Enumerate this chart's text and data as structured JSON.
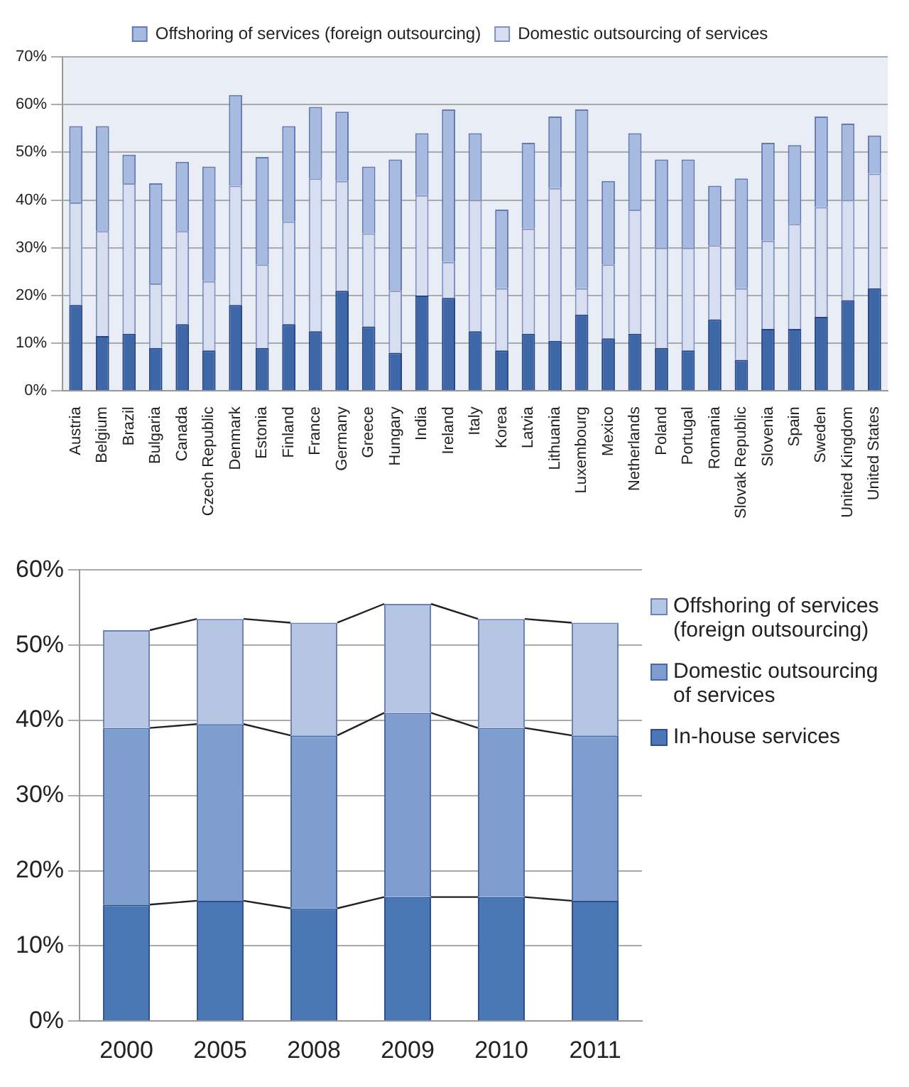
{
  "chart_data": [
    {
      "type": "bar",
      "stacked": true,
      "legend": "top",
      "grid": "y",
      "categories": [
        "Austria",
        "Belgium",
        "Brazil",
        "Bulgaria",
        "Canada",
        "Czech Republic",
        "Denmark",
        "Estonia",
        "Finland",
        "France",
        "Germany",
        "Greece",
        "Hungary",
        "India",
        "Ireland",
        "Italy",
        "Korea",
        "Latvia",
        "Lithuania",
        "Luxembourg",
        "Mexico",
        "Netherlands",
        "Poland",
        "Portugal",
        "Romania",
        "Slovak Republic",
        "Slovenia",
        "Spain",
        "Sweden",
        "United Kingdom",
        "United States"
      ],
      "ylim": [
        0,
        70
      ],
      "yticks": [
        {
          "value": 0,
          "label": "0%"
        },
        {
          "value": 10,
          "label": "10%"
        },
        {
          "value": 20,
          "label": "20%"
        },
        {
          "value": 30,
          "label": "30%"
        },
        {
          "value": 40,
          "label": "40%"
        },
        {
          "value": 50,
          "label": "50%"
        },
        {
          "value": 60,
          "label": "60%"
        },
        {
          "value": 70,
          "label": "70%"
        }
      ],
      "series": [
        {
          "color": "#3d67a6",
          "values": [
            18,
            11.5,
            12,
            9,
            14,
            8.5,
            18,
            9,
            14,
            12.5,
            21,
            13.5,
            8,
            20,
            19.5,
            12.5,
            8.5,
            12,
            10.5,
            16,
            11,
            12,
            9,
            8.5,
            15,
            6.5,
            13,
            13,
            15.5,
            19,
            21.5
          ]
        },
        {
          "name": "Domestic outsourcing of services",
          "color": "#d6def0",
          "values": [
            21.5,
            22,
            31.5,
            13.5,
            19.5,
            14.5,
            25,
            17.5,
            21.5,
            32,
            23,
            19.5,
            13,
            21,
            7.5,
            27.5,
            13,
            22,
            32,
            5.5,
            15.5,
            26,
            21,
            21.5,
            15.5,
            15,
            18.5,
            22,
            23,
            21,
            24
          ]
        },
        {
          "name": "Offshoring of services (foreign outsourcing)",
          "color": "#a6bbdf",
          "values": [
            16,
            22,
            6,
            21,
            14.5,
            24,
            19,
            22.5,
            20,
            15,
            14.5,
            14,
            27.5,
            13,
            32,
            14,
            16.5,
            18,
            15,
            37.5,
            17.5,
            16,
            18.5,
            18.5,
            12.5,
            23,
            20.5,
            16.5,
            19,
            16,
            8
          ]
        }
      ]
    },
    {
      "type": "bar",
      "stacked": true,
      "legend": "right",
      "grid": "y",
      "line_style": "solid",
      "categories": [
        "2000",
        "2005",
        "2008",
        "2009",
        "2010",
        "2011"
      ],
      "ylim": [
        0,
        60
      ],
      "yticks": [
        {
          "value": 0,
          "label": "0%"
        },
        {
          "value": 10,
          "label": "10%"
        },
        {
          "value": 20,
          "label": "20%"
        },
        {
          "value": 30,
          "label": "30%"
        },
        {
          "value": 40,
          "label": "40%"
        },
        {
          "value": 50,
          "label": "50%"
        },
        {
          "value": 60,
          "label": "60%"
        }
      ],
      "series": [
        {
          "name": "In-house services",
          "color": "#4a78b5",
          "values": [
            15.5,
            16,
            15,
            16.5,
            16.5,
            16
          ]
        },
        {
          "name": "Domestic outsourcing of services",
          "color": "#7f9ed0",
          "values": [
            23.5,
            23.5,
            23,
            24.5,
            22.5,
            22
          ]
        },
        {
          "name": "Offshoring of services (foreign outsourcing)",
          "color": "#b5c6e5",
          "values": [
            13,
            14,
            15,
            14.5,
            14.5,
            15
          ]
        }
      ]
    }
  ]
}
